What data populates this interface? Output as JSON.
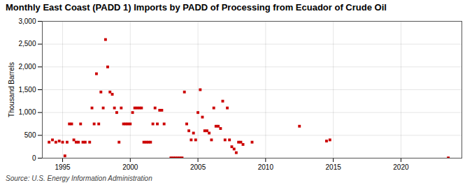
{
  "chart_data": {
    "type": "scatter",
    "title": "Monthly East Coast (PADD 1) Imports by PADD of Processing from Ecuador of Crude Oil",
    "ylabel": "Thousand Barrels",
    "source": "Source: U.S. Energy Information Administration",
    "color": "#cc0000",
    "marker": "square",
    "grid": true,
    "xlim": [
      1993.5,
      2024.5
    ],
    "xticks": [
      1995,
      2000,
      2005,
      2010,
      2015,
      2020
    ],
    "ylim": [
      0,
      3000
    ],
    "yticks": [
      0,
      500,
      {
        "value": 1000,
        "label": "1,000"
      },
      {
        "value": 1500,
        "label": "1,500"
      },
      {
        "value": 2000,
        "label": "2,000"
      },
      {
        "value": 2500,
        "label": "2,500"
      },
      {
        "value": 3000,
        "label": "3,000"
      }
    ],
    "x": [
      1994.0,
      1994.25,
      1994.5,
      1994.75,
      1995.0,
      1995.17,
      1995.33,
      1995.5,
      1995.67,
      1995.83,
      1996.0,
      1996.17,
      1996.33,
      1996.5,
      1996.67,
      1997.0,
      1997.17,
      1997.33,
      1997.5,
      1997.67,
      1997.83,
      1998.0,
      1998.17,
      1998.33,
      1998.5,
      1998.67,
      1998.83,
      1999.0,
      1999.17,
      1999.33,
      1999.5,
      1999.67,
      1999.83,
      2000.0,
      2000.17,
      2000.33,
      2000.5,
      2000.67,
      2000.83,
      2001.0,
      2001.17,
      2001.33,
      2001.5,
      2001.67,
      2001.83,
      2002.0,
      2002.17,
      2002.33,
      2002.5,
      2003.0,
      2003.17,
      2003.33,
      2003.5,
      2003.67,
      2003.83,
      2004.0,
      2004.17,
      2004.33,
      2004.5,
      2004.67,
      2004.83,
      2005.0,
      2005.17,
      2005.33,
      2005.5,
      2005.67,
      2005.83,
      2006.0,
      2006.17,
      2006.33,
      2006.5,
      2006.67,
      2006.83,
      2007.0,
      2007.17,
      2007.33,
      2007.5,
      2007.67,
      2007.83,
      2008.0,
      2008.17,
      2008.33,
      2009.0,
      2012.5,
      2014.5,
      2014.75,
      2023.5
    ],
    "values": [
      350,
      400,
      350,
      375,
      350,
      50,
      350,
      750,
      750,
      400,
      350,
      350,
      750,
      350,
      350,
      350,
      1100,
      750,
      1850,
      750,
      1450,
      1100,
      2600,
      2000,
      1450,
      1400,
      1100,
      1000,
      350,
      1100,
      750,
      750,
      750,
      750,
      1000,
      1100,
      1100,
      1100,
      1100,
      350,
      350,
      350,
      350,
      750,
      1100,
      750,
      1050,
      1050,
      750,
      5,
      5,
      5,
      5,
      5,
      5,
      1450,
      750,
      600,
      400,
      550,
      400,
      1000,
      1500,
      900,
      600,
      600,
      550,
      400,
      1100,
      700,
      700,
      650,
      1250,
      400,
      1100,
      400,
      250,
      200,
      120,
      350,
      350,
      300,
      350,
      700,
      375,
      400,
      5
    ]
  }
}
